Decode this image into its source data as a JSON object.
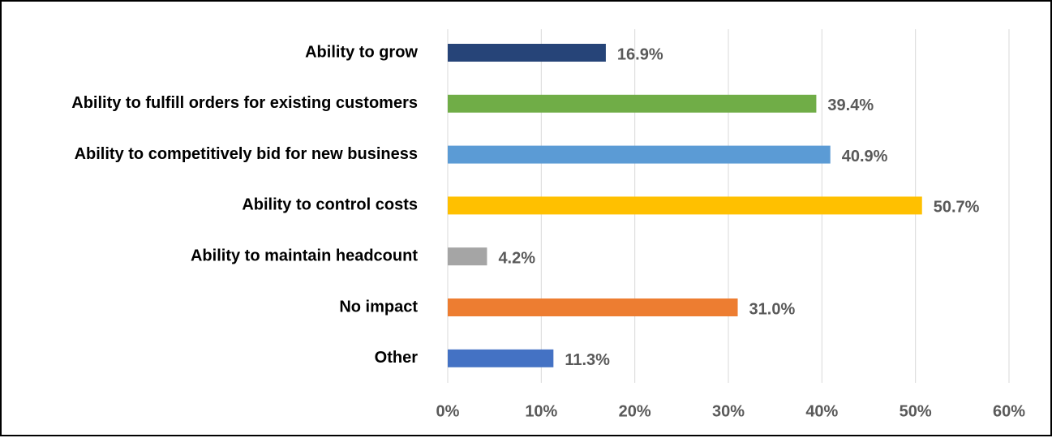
{
  "chart_data": {
    "type": "bar",
    "orientation": "horizontal",
    "categories": [
      "Ability to grow",
      "Ability to fulfill orders for existing customers",
      "Ability to competitively bid for new business",
      "Ability to control costs",
      "Ability to maintain headcount",
      "No impact",
      "Other"
    ],
    "values": [
      16.9,
      39.4,
      40.9,
      50.7,
      4.2,
      31.0,
      11.3
    ],
    "data_labels": [
      "16.9%",
      "39.4%",
      "40.9%",
      "50.7%",
      "4.2%",
      "31.0%",
      "11.3%"
    ],
    "bar_colors": [
      "#264478",
      "#70AD47",
      "#5B9BD5",
      "#FFC000",
      "#A5A5A5",
      "#ED7D31",
      "#4472C4"
    ],
    "xlim": [
      0,
      60
    ],
    "x_ticks": [
      0,
      10,
      20,
      30,
      40,
      50,
      60
    ],
    "x_tick_labels": [
      "0%",
      "10%",
      "20%",
      "30%",
      "40%",
      "50%",
      "60%"
    ],
    "grid": "vertical",
    "legend": "none",
    "title": "",
    "xlabel": "",
    "ylabel": ""
  }
}
